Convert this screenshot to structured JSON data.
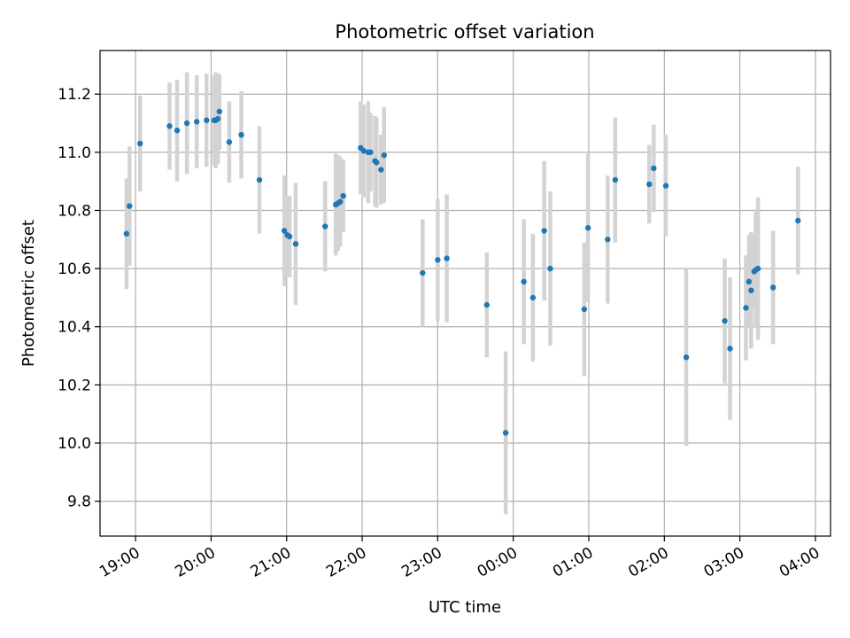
{
  "chart_data": {
    "type": "scatter",
    "title": "Photometric offset variation",
    "xlabel": "UTC time",
    "ylabel": "Photometric offset",
    "x_unit": "hours since 18:00 UTC",
    "xlim": [
      0.53,
      10.2
    ],
    "ylim": [
      9.68,
      11.35
    ],
    "grid": true,
    "x_ticks": [
      1,
      2,
      3,
      4,
      5,
      6,
      7,
      8,
      9,
      10
    ],
    "x_tick_labels": [
      "19:00",
      "20:00",
      "21:00",
      "22:00",
      "23:00",
      "00:00",
      "01:00",
      "02:00",
      "03:00",
      "04:00"
    ],
    "y_ticks": [
      9.8,
      10.0,
      10.2,
      10.4,
      10.6,
      10.8,
      11.0,
      11.2
    ],
    "y_tick_labels": [
      "9.8",
      "10.0",
      "10.2",
      "10.4",
      "10.6",
      "10.8",
      "11.0",
      "11.2"
    ],
    "point_color": "#1f77b4",
    "errorbar_color": "#d3d3d3",
    "series": [
      {
        "name": "offset",
        "x": [
          0.88,
          0.92,
          1.06,
          1.45,
          1.55,
          1.68,
          1.81,
          1.94,
          2.04,
          2.06,
          2.09,
          2.11,
          2.24,
          2.4,
          2.64,
          2.97,
          3.01,
          3.04,
          3.12,
          3.51,
          3.65,
          3.68,
          3.71,
          3.75,
          3.98,
          4.02,
          4.08,
          4.11,
          4.17,
          4.19,
          4.25,
          4.29,
          4.8,
          5.0,
          5.12,
          5.65,
          5.9,
          6.14,
          6.26,
          6.41,
          6.49,
          6.94,
          6.99,
          7.25,
          7.35,
          7.8,
          7.86,
          8.02,
          8.29,
          8.8,
          8.87,
          9.08,
          9.12,
          9.15,
          9.19,
          9.21,
          9.24,
          9.44,
          9.77
        ],
        "y": [
          10.72,
          10.815,
          11.03,
          11.09,
          11.075,
          11.1,
          11.105,
          11.11,
          11.11,
          11.11,
          11.115,
          11.14,
          11.035,
          11.06,
          10.905,
          10.73,
          10.715,
          10.71,
          10.685,
          10.745,
          10.82,
          10.825,
          10.83,
          10.85,
          11.015,
          11.005,
          11.0,
          11.0,
          10.97,
          10.965,
          10.94,
          10.99,
          10.585,
          10.63,
          10.635,
          10.475,
          10.035,
          10.555,
          10.5,
          10.73,
          10.6,
          10.46,
          10.74,
          10.7,
          10.905,
          10.89,
          10.945,
          10.885,
          10.295,
          10.42,
          10.325,
          10.465,
          10.555,
          10.525,
          10.59,
          10.595,
          10.6,
          10.535,
          10.765
        ],
        "yerr": [
          0.19,
          0.205,
          0.165,
          0.15,
          0.175,
          0.175,
          0.16,
          0.16,
          0.155,
          0.165,
          0.155,
          0.13,
          0.14,
          0.15,
          0.185,
          0.19,
          0.135,
          0.14,
          0.21,
          0.155,
          0.175,
          0.165,
          0.155,
          0.125,
          0.16,
          0.16,
          0.175,
          0.135,
          0.155,
          0.155,
          0.12,
          0.165,
          0.185,
          0.21,
          0.22,
          0.18,
          0.28,
          0.215,
          0.22,
          0.24,
          0.265,
          0.23,
          0.255,
          0.22,
          0.215,
          0.135,
          0.15,
          0.175,
          0.305,
          0.215,
          0.245,
          0.18,
          0.16,
          0.2,
          0.13,
          0.2,
          0.245,
          0.195,
          0.185
        ]
      }
    ]
  }
}
